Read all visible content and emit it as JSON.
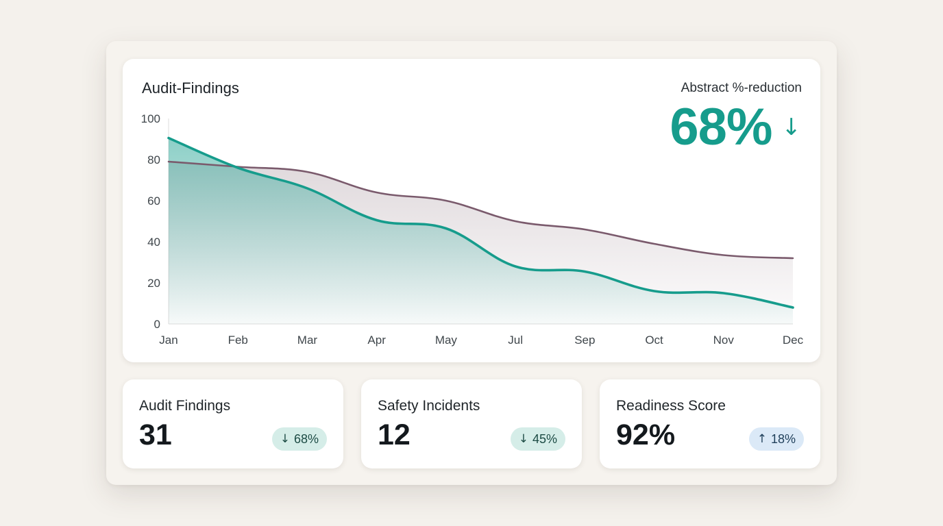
{
  "card": {
    "title": "Audit-Findings",
    "kpi_label": "Abstract %-reduction",
    "kpi_value": "68%",
    "kpi_arrow": "↓"
  },
  "chart_data": {
    "type": "area",
    "title": "Audit-Findings",
    "categories": [
      "Jan",
      "Feb",
      "Mar",
      "Apr",
      "May",
      "Jul",
      "Sep",
      "Oct",
      "Nov",
      "Dec"
    ],
    "y_ticks": [
      "0",
      "20",
      "40",
      "60",
      "80",
      "100"
    ],
    "ylim": [
      0,
      100
    ],
    "grid": false,
    "series": [
      {
        "values": [
          90.5,
          76,
          66,
          50.5,
          46.5,
          28,
          25.5,
          16,
          15,
          8
        ],
        "color": "#169c8c"
      },
      {
        "values": [
          79,
          76.5,
          74,
          64,
          60,
          50,
          46,
          39,
          33.5,
          32
        ],
        "color": "#7a5a6c"
      }
    ]
  },
  "stats": [
    {
      "label": "Audit Findings",
      "value": "31",
      "badge_arrow": "↓",
      "badge_text": "68%",
      "trend": "down"
    },
    {
      "label": "Safety Incidents",
      "value": "12",
      "badge_arrow": "↓",
      "badge_text": "45%",
      "trend": "down"
    },
    {
      "label": "Readiness Score",
      "value": "92%",
      "badge_arrow": "↑",
      "badge_text": "18%",
      "trend": "up"
    }
  ]
}
